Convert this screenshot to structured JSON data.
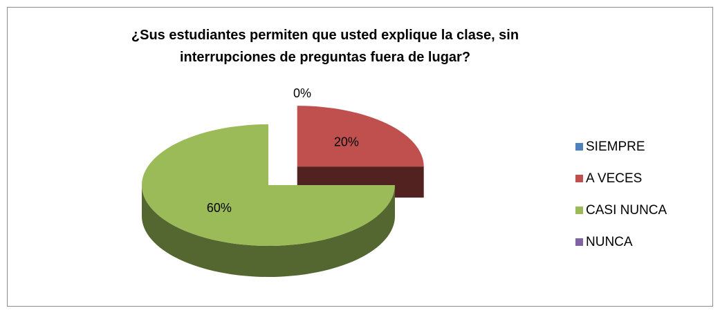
{
  "chart_data": {
    "type": "pie3d",
    "title": "¿Sus estudiantes permiten que usted explique la clase, sin\ninterrupciones de preguntas fuera de lugar?",
    "categories": [
      "SIEMPRE",
      "A VECES",
      "CASI NUNCA",
      "NUNCA"
    ],
    "values": [
      0,
      20,
      60,
      0
    ],
    "value_labels": [
      "0%",
      "20%",
      "60%",
      null
    ],
    "colors": [
      "#4f81bd",
      "#c0504d",
      "#9bbb59",
      "#8064a2"
    ],
    "legend": "right"
  }
}
